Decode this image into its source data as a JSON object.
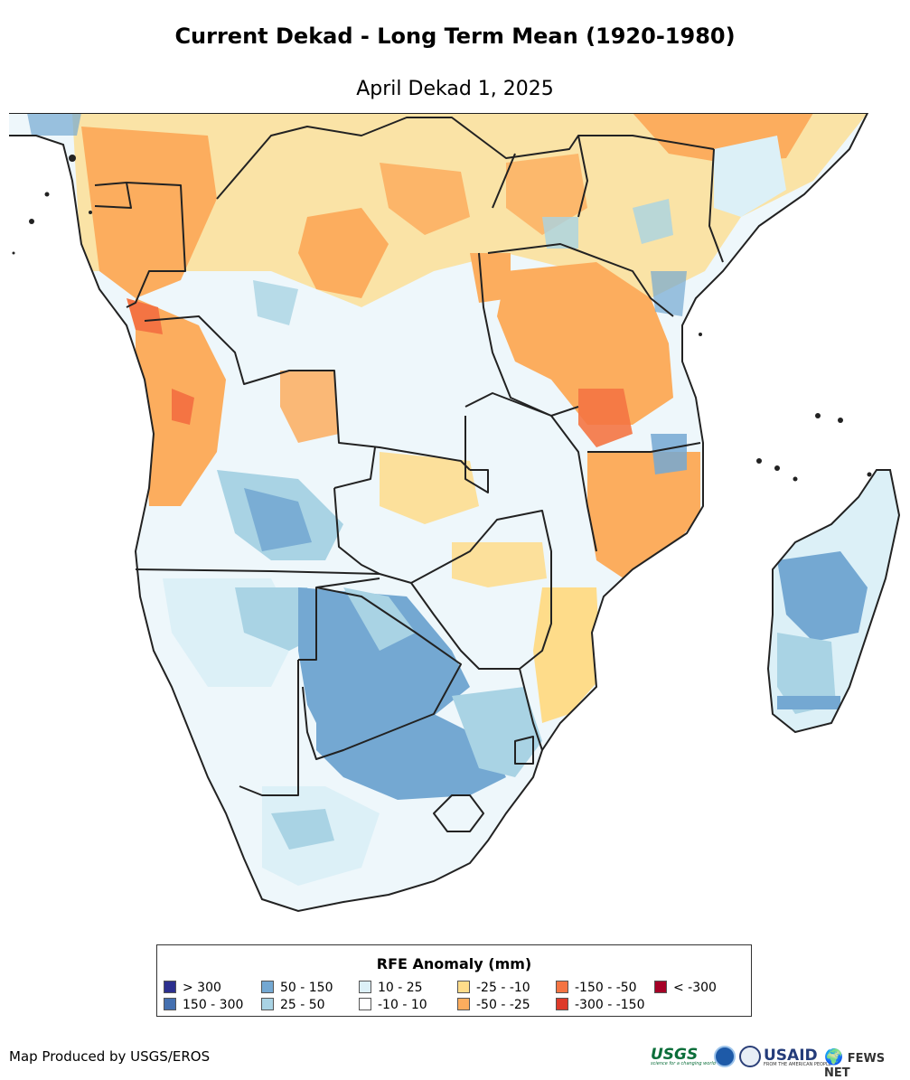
{
  "title": "Current Dekad - Long Term Mean (1920-1980)",
  "subtitle": "April Dekad 1, 2025",
  "legend": {
    "title": "RFE Anomaly (mm)",
    "items": [
      {
        "label": "> 300",
        "color": "#2c2f8f"
      },
      {
        "label": "150 - 300",
        "color": "#4470b0"
      },
      {
        "label": "50 - 150",
        "color": "#74a8d2"
      },
      {
        "label": "25 - 50",
        "color": "#a9d3e4"
      },
      {
        "label": "10 - 25",
        "color": "#dcf0f7"
      },
      {
        "label": "-10 - 10",
        "color": "#ffffff"
      },
      {
        "label": "-25 - -10",
        "color": "#fedc8a"
      },
      {
        "label": "-50 - -25",
        "color": "#fcad5e"
      },
      {
        "label": "-150 - -50",
        "color": "#f47443"
      },
      {
        "label": "-300 - -150",
        "color": "#dd3a2a"
      },
      {
        "label": "< -300",
        "color": "#a50026"
      }
    ]
  },
  "credit": "Map Produced by USGS/EROS",
  "logos": {
    "usgs": "USGS",
    "usgs_tagline": "science for a changing world",
    "usaid": "USAID",
    "usaid_tagline": "FROM THE AMERICAN PEOPLE",
    "fews": "FEWS NET"
  }
}
